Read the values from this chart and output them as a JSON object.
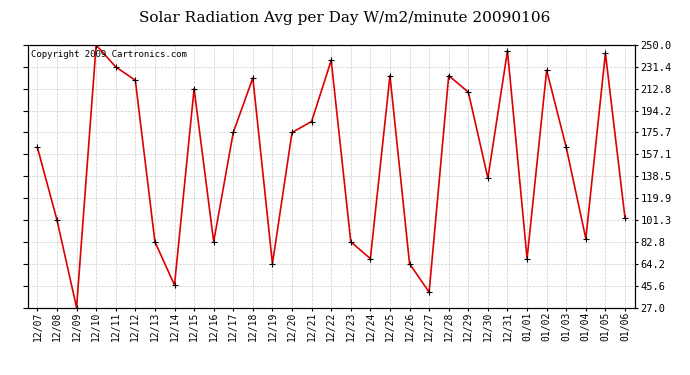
{
  "title": "Solar Radiation Avg per Day W/m2/minute 20090106",
  "copyright": "Copyright 2009 Cartronics.com",
  "dates": [
    "12/07",
    "12/08",
    "12/09",
    "12/10",
    "12/11",
    "12/12",
    "12/13",
    "12/14",
    "12/15",
    "12/16",
    "12/17",
    "12/18",
    "12/19",
    "12/20",
    "12/21",
    "12/22",
    "12/23",
    "12/24",
    "12/25",
    "12/26",
    "12/27",
    "12/28",
    "12/29",
    "12/30",
    "12/31",
    "01/01",
    "01/02",
    "01/03",
    "01/04",
    "01/05",
    "01/06"
  ],
  "values": [
    163.0,
    101.3,
    27.0,
    250.0,
    231.4,
    220.0,
    82.8,
    46.0,
    212.8,
    82.8,
    175.7,
    222.0,
    64.2,
    175.7,
    185.0,
    237.0,
    82.8,
    68.5,
    224.0,
    64.2,
    40.0,
    224.0,
    210.0,
    137.0,
    245.0,
    68.5,
    228.5,
    163.0,
    85.5,
    243.0,
    103.0
  ],
  "ylim_min": 27.0,
  "ylim_max": 250.0,
  "yticks": [
    27.0,
    45.6,
    64.2,
    82.8,
    101.3,
    119.9,
    138.5,
    157.1,
    175.7,
    194.2,
    212.8,
    231.4,
    250.0
  ],
  "line_color": "#dd0000",
  "bg_color": "#ffffff",
  "grid_color": "#cccccc",
  "title_fontsize": 11,
  "copyright_fontsize": 6.5,
  "tick_fontsize": 7,
  "ytick_fontsize": 7.5
}
